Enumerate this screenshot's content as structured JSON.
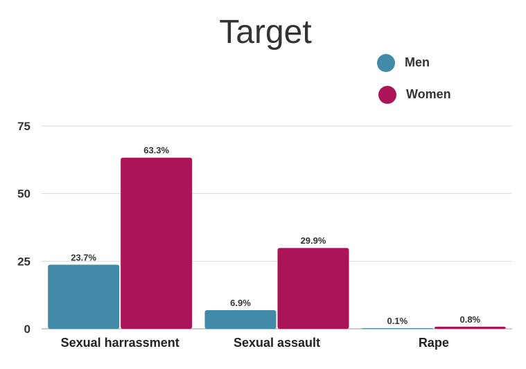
{
  "chart_data": {
    "type": "bar",
    "title": "Target",
    "xlabel": "",
    "ylabel": "",
    "categories": [
      "Sexual harrassment",
      "Sexual assault",
      "Rape"
    ],
    "series": [
      {
        "name": "Men",
        "color": "#418ba8",
        "values": [
          23.7,
          6.9,
          0.1
        ],
        "labels": [
          "23.7%",
          "6.9%",
          "0.1%"
        ]
      },
      {
        "name": "Women",
        "color": "#ab1459",
        "values": [
          63.3,
          29.9,
          0.8
        ],
        "labels": [
          "63.3%",
          "29.9%",
          "0.8%"
        ]
      }
    ],
    "ylim": [
      0,
      75
    ],
    "yticks": [
      0,
      25,
      50,
      75
    ],
    "grid": true,
    "legend_position": "top-right"
  }
}
